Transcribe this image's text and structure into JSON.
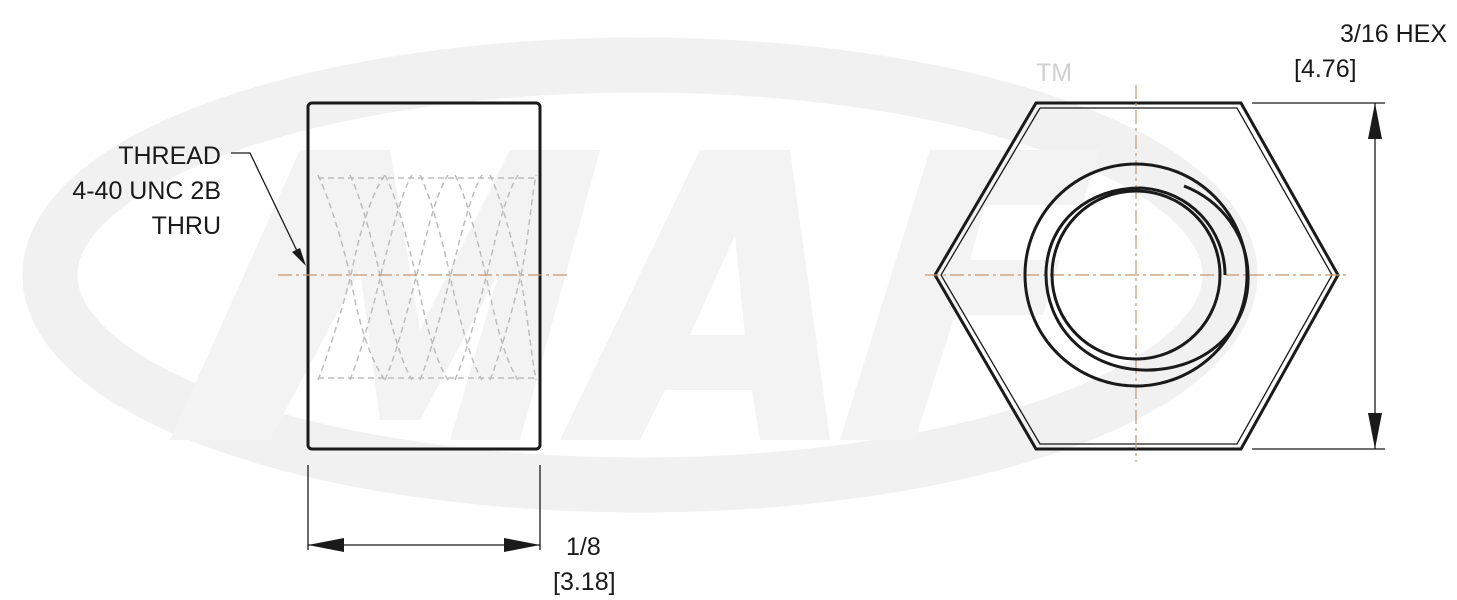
{
  "drawing": {
    "thread_callout": {
      "line1": "THREAD",
      "line2": "4-40 UNC 2B",
      "line3": "THRU"
    },
    "width_dimension": {
      "fraction": "1/8",
      "metric": "[3.18]"
    },
    "hex_dimension": {
      "fraction": "3/16 HEX",
      "metric": "[4.76]"
    },
    "watermark": {
      "trademark": "TM"
    }
  }
}
